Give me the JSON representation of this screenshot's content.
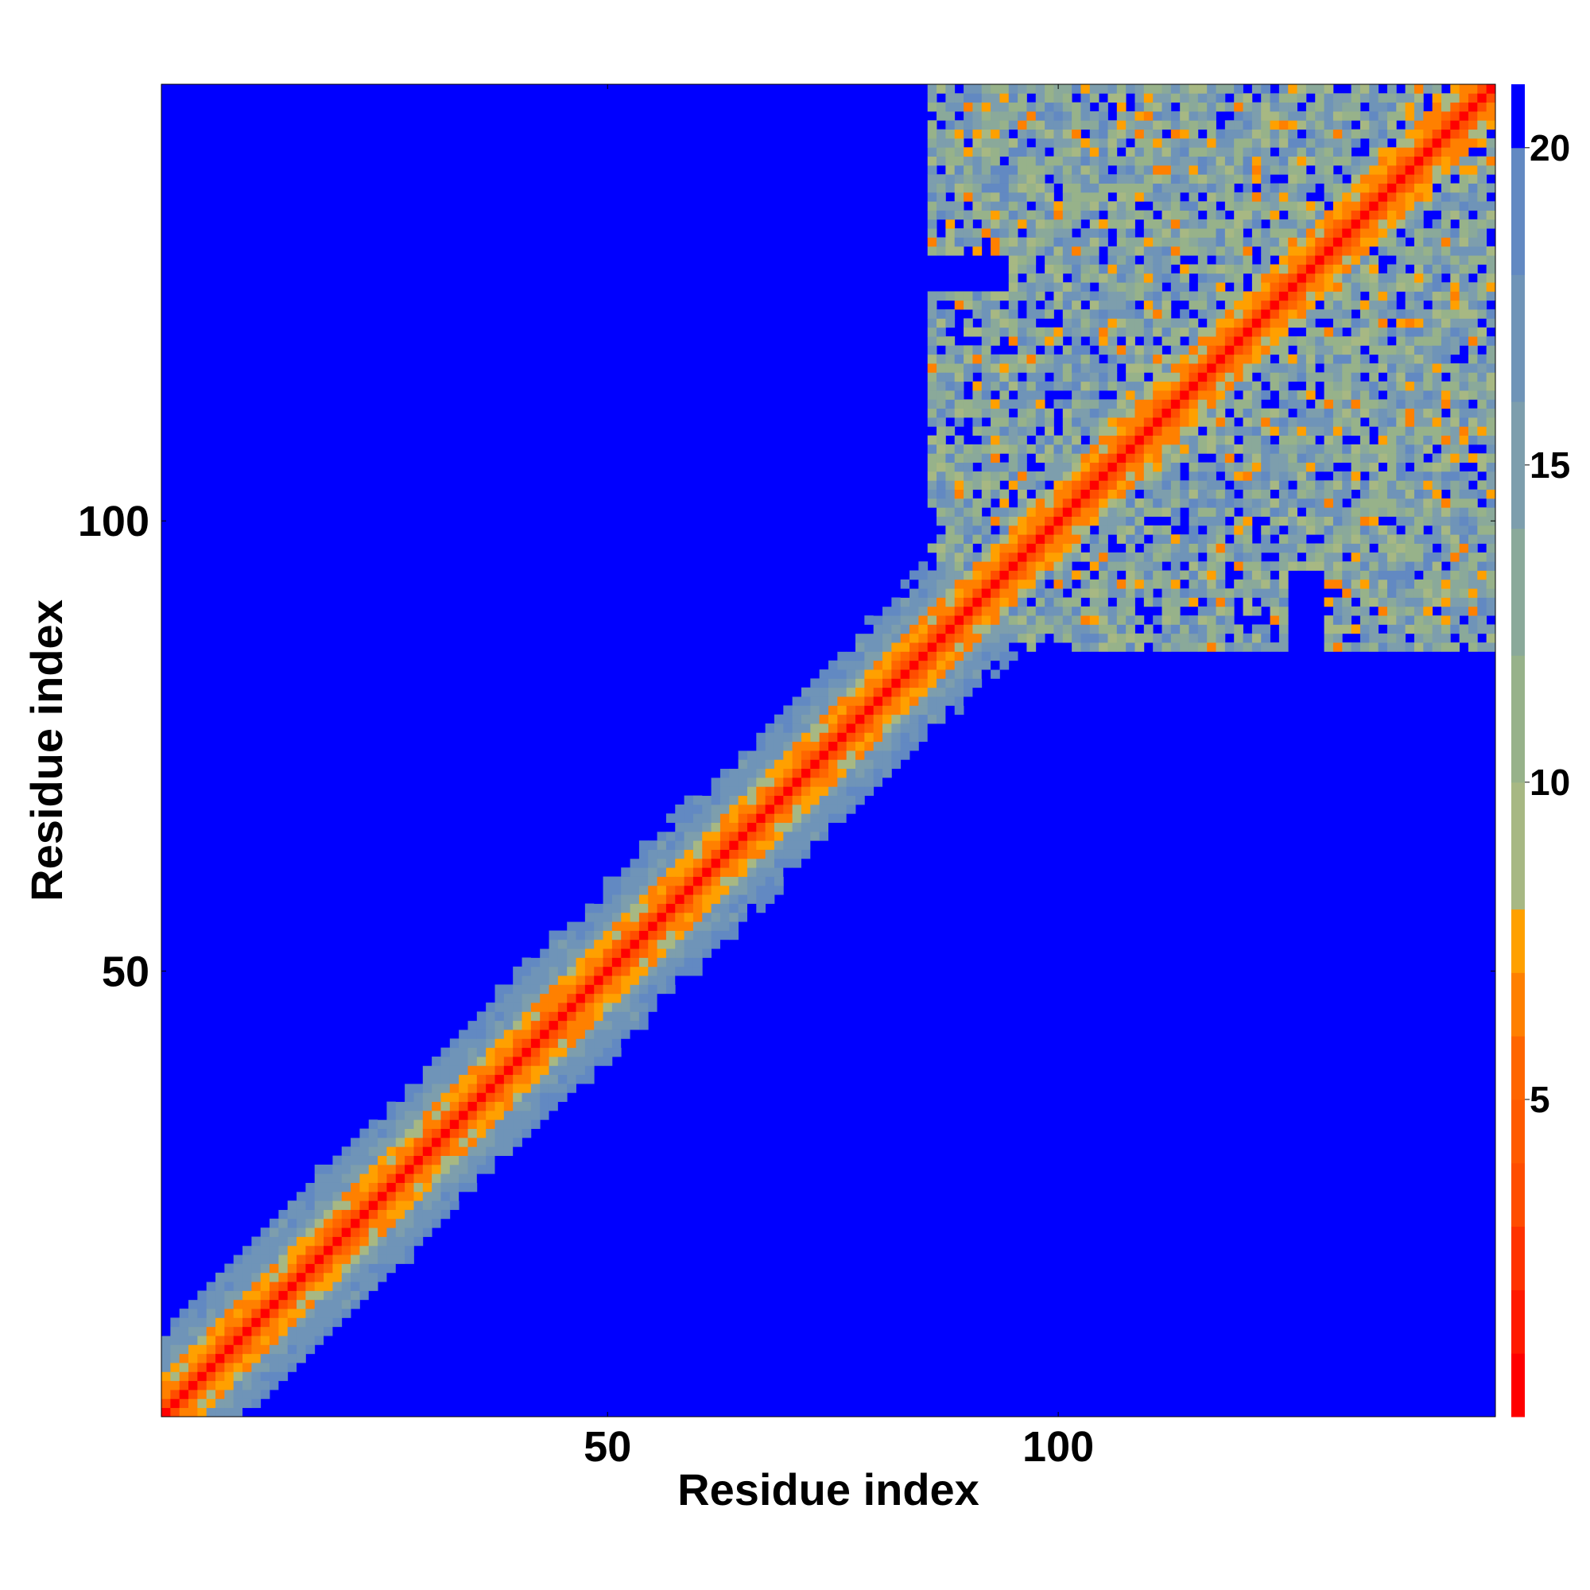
{
  "chart_data": {
    "type": "heatmap",
    "title": "",
    "xlabel": "Residue index",
    "ylabel": "Residue index",
    "n_residues": 148,
    "xlim": [
      1,
      148
    ],
    "ylim": [
      1,
      148
    ],
    "x_ticks": [
      50,
      100
    ],
    "y_ticks": [
      50,
      100
    ],
    "x_tick_labels": [
      "50",
      "100"
    ],
    "y_tick_labels": [
      "50",
      "100"
    ],
    "colorbar": {
      "range": [
        0,
        21
      ],
      "ticks": [
        5,
        10,
        15,
        20
      ],
      "tick_labels": [
        "5",
        "10",
        "15",
        "20"
      ],
      "colors": [
        {
          "from": 0,
          "to": 1,
          "color": "#ff0000"
        },
        {
          "from": 1,
          "to": 2,
          "color": "#ff1a00"
        },
        {
          "from": 2,
          "to": 3,
          "color": "#ff3300"
        },
        {
          "from": 3,
          "to": 4,
          "color": "#ff4d00"
        },
        {
          "from": 4,
          "to": 5,
          "color": "#ff5a00"
        },
        {
          "from": 5,
          "to": 6,
          "color": "#ff6600"
        },
        {
          "from": 6,
          "to": 7,
          "color": "#ff8000"
        },
        {
          "from": 7,
          "to": 8,
          "color": "#ffa000"
        },
        {
          "from": 8,
          "to": 10,
          "color": "#a7b883"
        },
        {
          "from": 10,
          "to": 12,
          "color": "#97b28a"
        },
        {
          "from": 12,
          "to": 14,
          "color": "#8aa99a"
        },
        {
          "from": 14,
          "to": 16,
          "color": "#7d9ead"
        },
        {
          "from": 16,
          "to": 18,
          "color": "#6f94b8"
        },
        {
          "from": 18,
          "to": 20,
          "color": "#6289c2"
        },
        {
          "from": 20,
          "to": 21,
          "color": "#0000ff"
        }
      ]
    },
    "background_color": "#0000ff",
    "description_of_structure": "",
    "regions": {
      "diagonal_band": {
        "from": 1,
        "to": 148
      },
      "contact_blocks": [
        {
          "x": [
            86,
            148
          ],
          "y": [
            130,
            148
          ]
        },
        {
          "x": [
            86,
            148
          ],
          "y": [
            95,
            125
          ]
        },
        {
          "x": [
            130,
            148
          ],
          "y": [
            90,
            112
          ]
        }
      ]
    }
  }
}
